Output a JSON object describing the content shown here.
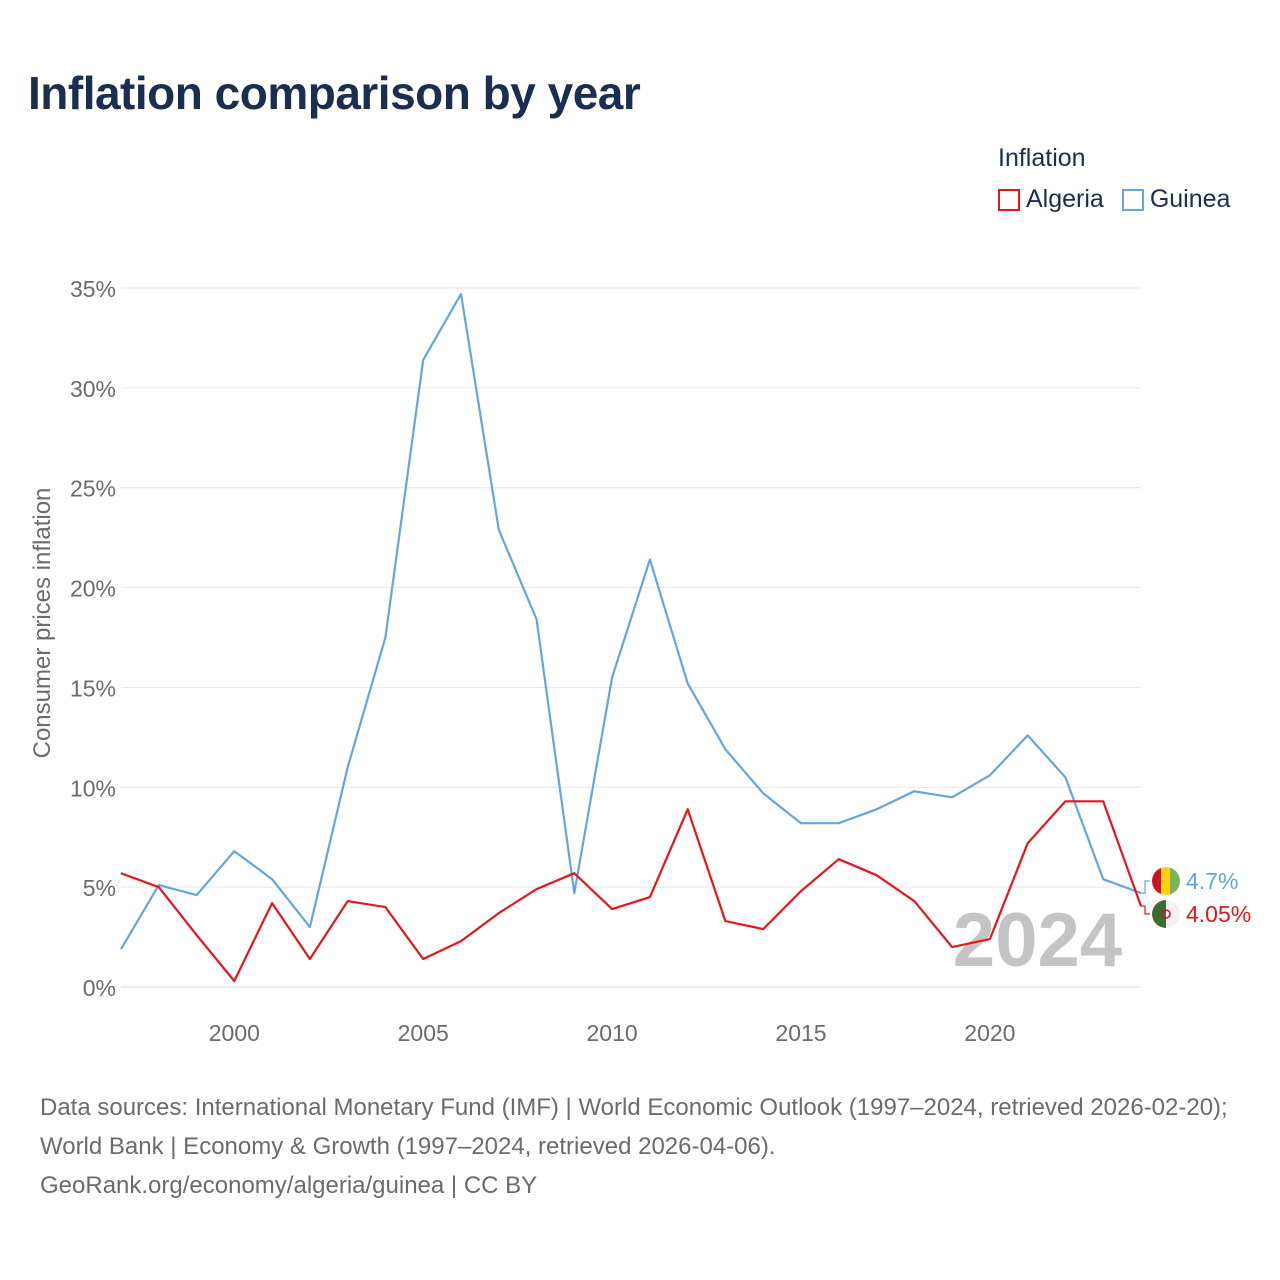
{
  "title": "Inflation comparison by year",
  "legend": {
    "title": "Inflation",
    "items": [
      {
        "label": "Algeria",
        "color": "#e8141c"
      },
      {
        "label": "Guinea",
        "color": "#62a6e0"
      }
    ]
  },
  "footer": {
    "line1": "Data sources: International Monetary Fund (IMF) | World Economic Outlook (1997–2024, retrieved 2026-02-20); World Bank | Economy & Growth (1997–2024, retrieved 2026-04-06).",
    "line2": "GeoRank.org/economy/algeria/guinea | CC BY"
  },
  "chart_data": {
    "type": "line",
    "title": "Inflation comparison by year",
    "xlabel": "",
    "ylabel": "Consumer prices inflation",
    "xlim": [
      1997,
      2024
    ],
    "ylim": [
      0,
      35
    ],
    "xticks": [
      2000,
      2005,
      2010,
      2015,
      2020
    ],
    "xtick_labels": [
      "2000",
      "2005",
      "2010",
      "2015",
      "2020"
    ],
    "yticks": [
      0,
      5,
      10,
      15,
      20,
      25,
      30,
      35
    ],
    "ytick_labels": [
      "0%",
      "5%",
      "10%",
      "15%",
      "20%",
      "25%",
      "30%",
      "35%"
    ],
    "grid": true,
    "year_watermark": "2024",
    "x": [
      1997,
      1998,
      1999,
      2000,
      2001,
      2002,
      2003,
      2004,
      2005,
      2006,
      2007,
      2008,
      2009,
      2010,
      2011,
      2012,
      2013,
      2014,
      2015,
      2016,
      2017,
      2018,
      2019,
      2020,
      2021,
      2022,
      2023,
      2024
    ],
    "series": [
      {
        "name": "Algeria",
        "color": "#e8141c",
        "end_label": "4.05%",
        "values": [
          5.7,
          5.0,
          2.6,
          0.3,
          4.2,
          1.4,
          4.3,
          4.0,
          1.4,
          2.3,
          3.7,
          4.9,
          5.7,
          3.9,
          4.5,
          8.9,
          3.3,
          2.9,
          4.8,
          6.4,
          5.6,
          4.3,
          2.0,
          2.4,
          7.2,
          9.3,
          9.3,
          4.05
        ]
      },
      {
        "name": "Guinea",
        "color": "#62a6e0",
        "end_label": "4.7%",
        "values": [
          1.9,
          5.1,
          4.6,
          6.8,
          5.4,
          3.0,
          11.0,
          17.5,
          31.4,
          34.7,
          22.9,
          18.4,
          4.7,
          15.5,
          21.4,
          15.2,
          11.9,
          9.7,
          8.2,
          8.2,
          8.9,
          9.8,
          9.5,
          10.6,
          12.6,
          10.5,
          5.4,
          4.7
        ]
      }
    ]
  }
}
